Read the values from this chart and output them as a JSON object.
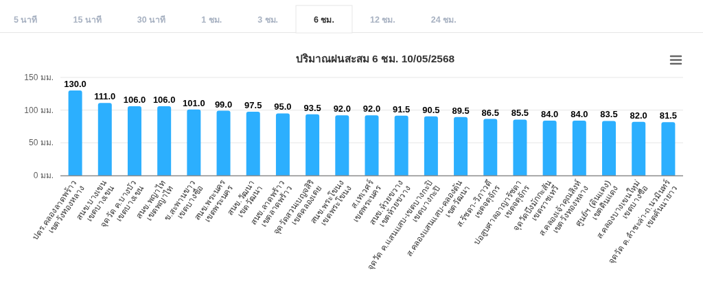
{
  "chart_data": {
    "type": "bar",
    "title": "ปริมาณฝนสะสม 6 ชม. 10/05/2568",
    "categories": [
      "ปตร.คลองลาดพร้าว\nเขตวังทองหลาง",
      "สนข.บางเขน\nเขตบางเขน",
      "จุดวัด ค.บางบัว\nเขตบางเขน",
      "สนข.พญาไท\nเขตพญาไท",
      "ข.สะพานขาว\nเขตบางซื่อ",
      "สนข.พระนคร\nเขตพระนคร",
      "สนข.วัฒนา\nเขตวัฒนา",
      "สนข.ลาดพร้าว\nเขตลาดพร้าว",
      "จุดวัดสวนเบญจสิริ\nเขตคลองเตย",
      "สนข.พระโขนง\nเขตพระโขนง",
      "ส.เทเวศร์\nเขตพระนคร",
      "สนข.ห้วยขวาง\nเขตห้วยขวาง",
      "จุดวัด ค.แสนแสบ-เขตบางกะปิ\nเขตบางกะปิ",
      "ส.คลองแสนแสบ-คลองตัน\nเขตวัฒนา",
      "ส.รัชดา-วิภาวดี\nเขตจตุจักร",
      "บ่อสูบศาลอาญารัชดา\nเขตจตุจักร",
      "จุดวัดบึงมักกะสัน\nเขตราชเทวี",
      "ส.คลองเจ้าคุณสิงห์\nเขตวังทองหลาง",
      "ศูนย์ฯ (ดินแดง)\nเขตดินแดง",
      "ส.คลองบางเขนใหม่\nเขตบางซื่อ",
      "จุดวัด ค.ลำชะล่า-ถ.นวมินทร์\nเขตคันนายาว"
    ],
    "values": [
      130,
      111,
      106,
      106,
      101,
      99,
      97.5,
      95,
      93.5,
      92,
      92,
      91.5,
      90.5,
      89.5,
      86.5,
      85.5,
      84,
      84,
      83.5,
      82,
      81.5
    ],
    "value_labels": [
      "130.0",
      "111.0",
      "106.0",
      "106.0",
      "101.0",
      "99.0",
      "97.5",
      "95.0",
      "93.5",
      "92.0",
      "92.0",
      "91.5",
      "90.5",
      "89.5",
      "86.5",
      "85.5",
      "84.0",
      "84.0",
      "83.5",
      "82.0",
      "81.5"
    ],
    "color": "#2caffe",
    "ylim": [
      0,
      150
    ],
    "yticks": [
      {
        "value": 0,
        "label": "0 มม."
      },
      {
        "value": 50,
        "label": "50 มม."
      },
      {
        "value": 100,
        "label": "100 มม."
      },
      {
        "value": 150,
        "label": "150 มม."
      }
    ],
    "grid": "y",
    "annotations": [
      "5 นาที",
      "15 นาที",
      "30 นาที",
      "1 ชม.",
      "3 ชม.",
      "6 ชม.",
      "12 ชม.",
      "24 ชม."
    ]
  }
}
